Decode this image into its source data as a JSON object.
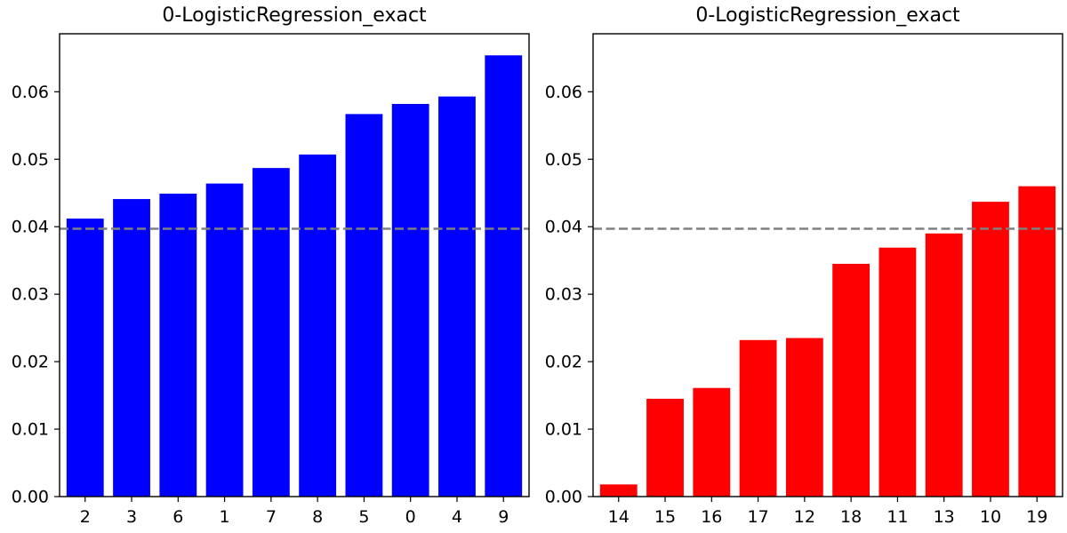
{
  "chart_data": [
    {
      "type": "bar",
      "title": "0-LogisticRegression_exact",
      "xlabel": "",
      "ylabel": "",
      "categories": [
        "2",
        "3",
        "6",
        "1",
        "7",
        "8",
        "5",
        "0",
        "4",
        "9"
      ],
      "values": [
        0.0412,
        0.0441,
        0.0449,
        0.0464,
        0.0487,
        0.0507,
        0.0567,
        0.0582,
        0.0593,
        0.0654
      ],
      "bar_color": "#0000ff",
      "reference_line": {
        "y": 0.0397,
        "color": "#808080",
        "style": "dashed"
      },
      "ylim": [
        0,
        0.0686
      ],
      "yticks": [
        "0.00",
        "0.01",
        "0.02",
        "0.03",
        "0.04",
        "0.05",
        "0.06"
      ],
      "grid": false
    },
    {
      "type": "bar",
      "title": "0-LogisticRegression_exact",
      "xlabel": "",
      "ylabel": "",
      "categories": [
        "14",
        "15",
        "16",
        "17",
        "12",
        "18",
        "11",
        "13",
        "10",
        "19"
      ],
      "values": [
        0.0018,
        0.0145,
        0.0161,
        0.0232,
        0.0235,
        0.0345,
        0.0369,
        0.039,
        0.0437,
        0.046
      ],
      "bar_color": "#ff0000",
      "reference_line": {
        "y": 0.0397,
        "color": "#808080",
        "style": "dashed"
      },
      "ylim": [
        0,
        0.0686
      ],
      "yticks": [
        "0.00",
        "0.01",
        "0.02",
        "0.03",
        "0.04",
        "0.05",
        "0.06"
      ],
      "grid": false
    }
  ]
}
